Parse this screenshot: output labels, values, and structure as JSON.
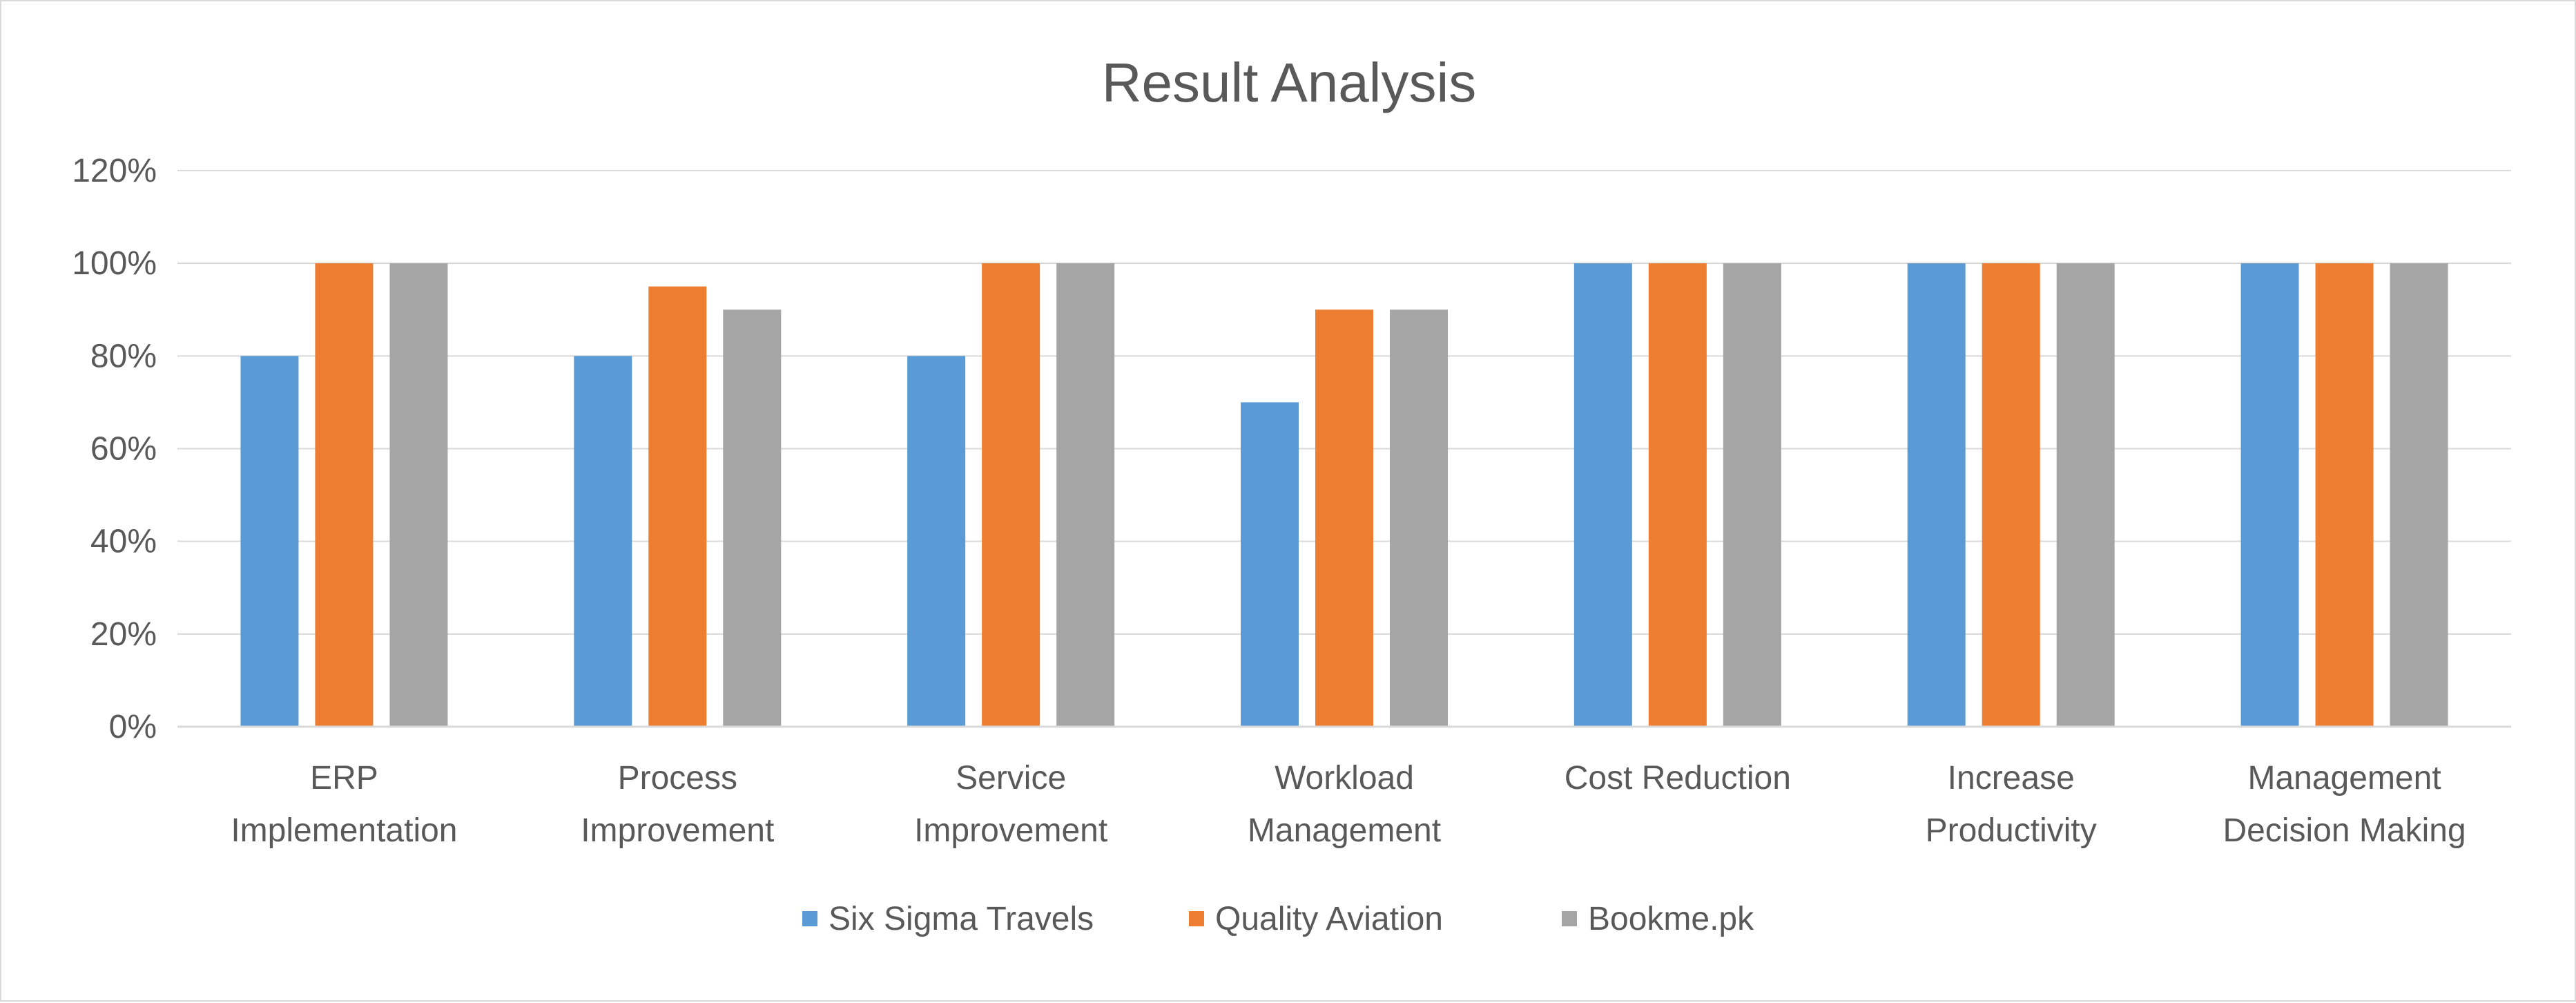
{
  "chart_data": {
    "type": "bar",
    "title": "Result Analysis",
    "xlabel": "",
    "ylabel": "",
    "ylim": [
      0,
      1.2
    ],
    "yticks": [
      0,
      0.2,
      0.4,
      0.6,
      0.8,
      1.0,
      1.2
    ],
    "ytick_labels": [
      "0%",
      "20%",
      "40%",
      "60%",
      "80%",
      "100%",
      "120%"
    ],
    "grid": true,
    "legend_position": "bottom",
    "categories": [
      [
        "ERP",
        "Implementation"
      ],
      [
        "Process",
        "Improvement"
      ],
      [
        "Service",
        "Improvement"
      ],
      [
        "Workload",
        "Management"
      ],
      [
        "Cost Reduction"
      ],
      [
        "Increase",
        "Productivity"
      ],
      [
        "Management",
        "Decision Making"
      ]
    ],
    "series": [
      {
        "name": "Six Sigma Travels",
        "color": "#5b9bd5",
        "values": [
          0.8,
          0.8,
          0.8,
          0.7,
          1.0,
          1.0,
          1.0
        ]
      },
      {
        "name": "Quality Aviation",
        "color": "#ed7d31",
        "values": [
          1.0,
          0.95,
          1.0,
          0.9,
          1.0,
          1.0,
          1.0
        ]
      },
      {
        "name": "Bookme.pk",
        "color": "#a5a5a5",
        "values": [
          1.0,
          0.9,
          1.0,
          0.9,
          1.0,
          1.0,
          1.0
        ]
      }
    ]
  },
  "colors": {
    "grid": "#d9d9d9",
    "text": "#595959",
    "background": "#ffffff"
  }
}
